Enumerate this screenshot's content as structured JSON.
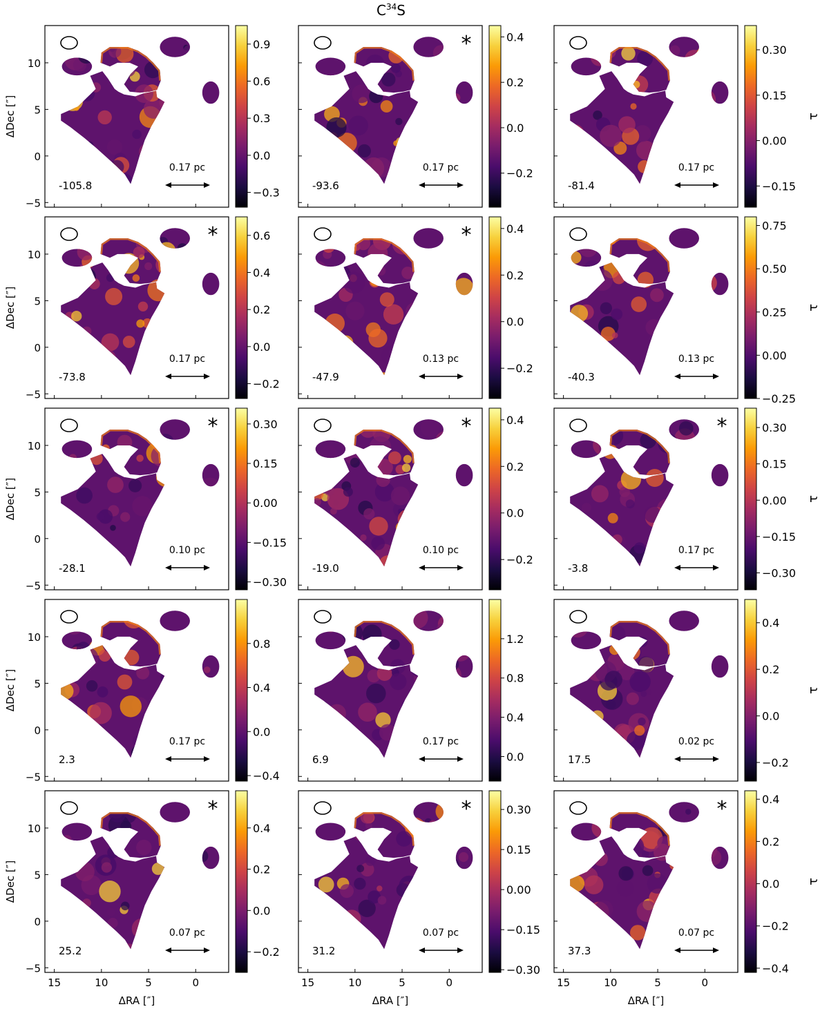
{
  "figure": {
    "title": "C",
    "title_sup": "34",
    "title_tail": "S",
    "xlabel": "ΔRA [″]",
    "ylabel": "ΔDec [″]",
    "cbar_label": "τ",
    "xticks": [
      "15",
      "10",
      "5",
      "0"
    ],
    "yticks": [
      "10",
      "5",
      "0",
      "−5"
    ],
    "colormap_stops": [
      "#000004",
      "#1b0c41",
      "#4a0c6b",
      "#781c6d",
      "#a52c60",
      "#cf4446",
      "#ed6925",
      "#fb9b06",
      "#f7d13d",
      "#fcffa4"
    ]
  },
  "chart_data": {
    "type": "heatmap",
    "description": "Optical depth (tau) maps of C34S across 15 velocity channels",
    "x_range": [
      16,
      -3.5
    ],
    "y_range": [
      -5.5,
      14
    ],
    "panels": [
      {
        "velocity": "-105.8",
        "scale": "0.17 pc",
        "star": false,
        "cbar_min": -0.42,
        "cbar_max": 1.05,
        "cbar_ticks": [
          "0.9",
          "0.6",
          "0.3",
          "0.0",
          "−0.3"
        ],
        "cbar_values": [
          0.9,
          0.6,
          0.3,
          0.0,
          -0.3
        ]
      },
      {
        "velocity": "-93.6",
        "scale": "0.17 pc",
        "star": true,
        "cbar_min": -0.35,
        "cbar_max": 0.45,
        "cbar_ticks": [
          "0.4",
          "0.2",
          "0.0",
          "−0.2"
        ],
        "cbar_values": [
          0.4,
          0.2,
          0.0,
          -0.2
        ]
      },
      {
        "velocity": "-81.4",
        "scale": "0.17 pc",
        "star": false,
        "cbar_min": -0.22,
        "cbar_max": 0.38,
        "cbar_ticks": [
          "0.30",
          "0.15",
          "0.00",
          "−0.15"
        ],
        "cbar_values": [
          0.3,
          0.15,
          0.0,
          -0.15
        ]
      },
      {
        "velocity": "-73.8",
        "scale": "0.17 pc",
        "star": true,
        "cbar_min": -0.28,
        "cbar_max": 0.7,
        "cbar_ticks": [
          "0.6",
          "0.4",
          "0.2",
          "0.0",
          "−0.2"
        ],
        "cbar_values": [
          0.6,
          0.4,
          0.2,
          0.0,
          -0.2
        ]
      },
      {
        "velocity": "-47.9",
        "scale": "0.13 pc",
        "star": true,
        "cbar_min": -0.33,
        "cbar_max": 0.45,
        "cbar_ticks": [
          "0.4",
          "0.2",
          "0.0",
          "−0.2"
        ],
        "cbar_values": [
          0.4,
          0.2,
          0.0,
          -0.2
        ]
      },
      {
        "velocity": "-40.3",
        "scale": "0.13 pc",
        "star": false,
        "cbar_min": -0.25,
        "cbar_max": 0.8,
        "cbar_ticks": [
          "0.75",
          "0.50",
          "0.25",
          "0.00",
          "−0.25"
        ],
        "cbar_values": [
          0.75,
          0.5,
          0.25,
          0.0,
          -0.25
        ]
      },
      {
        "velocity": "-28.1",
        "scale": "0.10 pc",
        "star": true,
        "cbar_min": -0.33,
        "cbar_max": 0.36,
        "cbar_ticks": [
          "0.30",
          "0.15",
          "0.00",
          "−0.15",
          "−0.30"
        ],
        "cbar_values": [
          0.3,
          0.15,
          0.0,
          -0.15,
          -0.3
        ]
      },
      {
        "velocity": "-19.0",
        "scale": "0.10 pc",
        "star": true,
        "cbar_min": -0.33,
        "cbar_max": 0.45,
        "cbar_ticks": [
          "0.4",
          "0.2",
          "0.0",
          "−0.2"
        ],
        "cbar_values": [
          0.4,
          0.2,
          0.0,
          -0.2
        ]
      },
      {
        "velocity": "-3.8",
        "scale": "0.17 pc",
        "star": true,
        "cbar_min": -0.37,
        "cbar_max": 0.38,
        "cbar_ticks": [
          "0.30",
          "0.15",
          "0.00",
          "−0.15",
          "−0.30"
        ],
        "cbar_values": [
          0.3,
          0.15,
          0.0,
          -0.15,
          -0.3
        ]
      },
      {
        "velocity": "2.3",
        "scale": "0.17 pc",
        "star": false,
        "cbar_min": -0.45,
        "cbar_max": 1.2,
        "cbar_ticks": [
          "0.8",
          "0.4",
          "0.0",
          "−0.4"
        ],
        "cbar_values": [
          0.8,
          0.4,
          0.0,
          -0.4
        ]
      },
      {
        "velocity": "6.9",
        "scale": "0.17 pc",
        "star": false,
        "cbar_min": -0.25,
        "cbar_max": 1.6,
        "cbar_ticks": [
          "1.2",
          "0.8",
          "0.4",
          "0.0"
        ],
        "cbar_values": [
          1.2,
          0.8,
          0.4,
          0.0
        ]
      },
      {
        "velocity": "17.5",
        "scale": "0.02 pc",
        "star": false,
        "cbar_min": -0.28,
        "cbar_max": 0.5,
        "cbar_ticks": [
          "0.4",
          "0.2",
          "0.0",
          "−0.2"
        ],
        "cbar_values": [
          0.4,
          0.2,
          0.0,
          -0.2
        ]
      },
      {
        "velocity": "25.2",
        "scale": "0.07 pc",
        "star": true,
        "cbar_min": -0.3,
        "cbar_max": 0.58,
        "cbar_ticks": [
          "0.4",
          "0.2",
          "0.0",
          "−0.2"
        ],
        "cbar_values": [
          0.4,
          0.2,
          0.0,
          -0.2
        ]
      },
      {
        "velocity": "31.2",
        "scale": "0.07 pc",
        "star": true,
        "cbar_min": -0.31,
        "cbar_max": 0.37,
        "cbar_ticks": [
          "0.30",
          "0.15",
          "0.00",
          "−0.15",
          "−0.30"
        ],
        "cbar_values": [
          0.3,
          0.15,
          0.0,
          -0.15,
          -0.3
        ]
      },
      {
        "velocity": "37.3",
        "scale": "0.07 pc",
        "star": true,
        "cbar_min": -0.42,
        "cbar_max": 0.44,
        "cbar_ticks": [
          "0.4",
          "0.2",
          "0.0",
          "−0.2",
          "−0.4"
        ],
        "cbar_values": [
          0.4,
          0.2,
          0.0,
          -0.2,
          -0.4
        ]
      }
    ]
  }
}
